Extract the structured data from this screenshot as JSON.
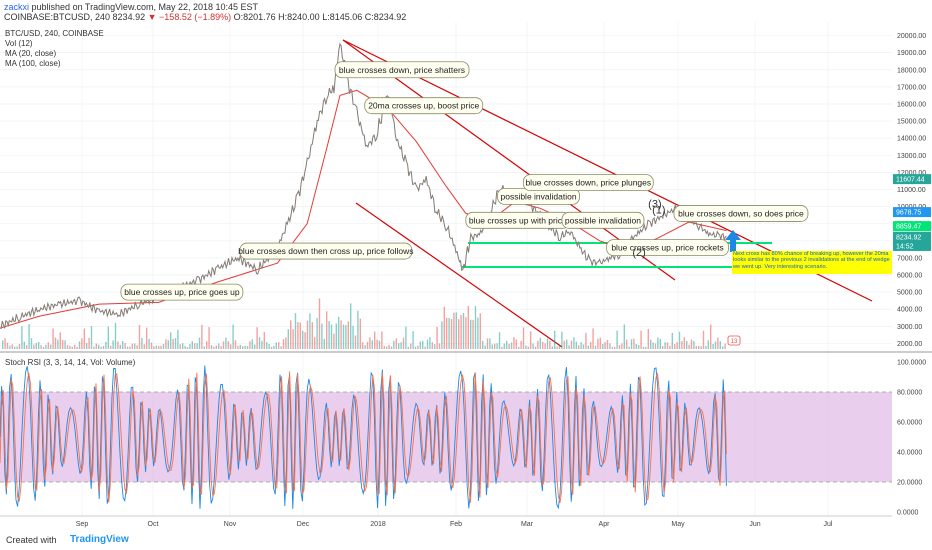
{
  "header": {
    "author": "zackxi",
    "published": "published on TradingView.com, May 22, 2018 10:45 EST",
    "symbol": "COINBASE:BTCUSD, 240",
    "last": "8234.92",
    "change": "−158.52 (−1.89%)",
    "ohlc": "O:8201.76 H:8240.00 L:8145.06 C:8234.92"
  },
  "footer": {
    "created": "Created with",
    "brand": "TradingView"
  },
  "colors": {
    "price_up": "#26a69a",
    "price_down": "#ef5350",
    "ma20": "#e53935",
    "wedge": "#d50000",
    "support": "#00e676",
    "rsi_k": "#1e88e5",
    "rsi_d": "#ff7043",
    "rsi_band": "#e1bee7"
  },
  "chart_data": {
    "type": "line",
    "legend": [
      "BTC/USD, 240, COINBASE",
      "Vol (12)",
      "MA (20, close)",
      "MA (100, close)"
    ],
    "x_ticks": [
      "Sep",
      "Oct",
      "Nov",
      "Dec",
      "2018",
      "Feb",
      "Mar",
      "Apr",
      "May",
      "Jun",
      "Jul"
    ],
    "y_ticks": [
      "20000.00",
      "19000.00",
      "18000.00",
      "17000.00",
      "16000.00",
      "15000.00",
      "14000.00",
      "13000.00",
      "12000.00",
      "11000.00",
      "10000.00",
      "9000.00",
      "8000.00",
      "7000.00",
      "6000.00",
      "5000.00",
      "4000.00",
      "3000.00",
      "2000.00"
    ],
    "ylim": [
      1500,
      20500
    ],
    "x_range": [
      0,
      900
    ],
    "price_path": [
      [
        0,
        3000
      ],
      [
        20,
        3550
      ],
      [
        40,
        4000
      ],
      [
        60,
        4300
      ],
      [
        80,
        4500
      ],
      [
        100,
        3900
      ],
      [
        120,
        3700
      ],
      [
        140,
        4300
      ],
      [
        160,
        4700
      ],
      [
        180,
        5200
      ],
      [
        200,
        5700
      ],
      [
        220,
        6400
      ],
      [
        240,
        7000
      ],
      [
        260,
        6300
      ],
      [
        280,
        7600
      ],
      [
        290,
        9000
      ],
      [
        300,
        10500
      ],
      [
        310,
        12500
      ],
      [
        320,
        15000
      ],
      [
        330,
        16500
      ],
      [
        337,
        17000
      ],
      [
        343,
        19600
      ],
      [
        350,
        17500
      ],
      [
        360,
        15500
      ],
      [
        370,
        13500
      ],
      [
        380,
        14200
      ],
      [
        392,
        16800
      ],
      [
        400,
        14000
      ],
      [
        410,
        12500
      ],
      [
        420,
        11000
      ],
      [
        430,
        11600
      ],
      [
        440,
        9800
      ],
      [
        450,
        8900
      ],
      [
        460,
        7500
      ],
      [
        467,
        6200
      ],
      [
        475,
        8200
      ],
      [
        485,
        8400
      ],
      [
        495,
        9700
      ],
      [
        505,
        11200
      ],
      [
        515,
        10300
      ],
      [
        525,
        10700
      ],
      [
        535,
        10100
      ],
      [
        545,
        9500
      ],
      [
        555,
        8800
      ],
      [
        565,
        8200
      ],
      [
        575,
        8600
      ],
      [
        585,
        7600
      ],
      [
        595,
        6800
      ],
      [
        605,
        6700
      ],
      [
        615,
        7000
      ],
      [
        625,
        7200
      ],
      [
        635,
        8000
      ],
      [
        645,
        8500
      ],
      [
        655,
        9000
      ],
      [
        670,
        9500
      ],
      [
        685,
        10000
      ],
      [
        695,
        9400
      ],
      [
        705,
        8900
      ],
      [
        715,
        8400
      ],
      [
        725,
        8300
      ],
      [
        733,
        8235
      ]
    ],
    "ma20_path": [
      [
        0,
        2900
      ],
      [
        40,
        3600
      ],
      [
        100,
        4300
      ],
      [
        160,
        4400
      ],
      [
        220,
        5600
      ],
      [
        280,
        6700
      ],
      [
        310,
        9000
      ],
      [
        330,
        13500
      ],
      [
        343,
        16500
      ],
      [
        360,
        16800
      ],
      [
        392,
        15700
      ],
      [
        420,
        13800
      ],
      [
        450,
        11200
      ],
      [
        470,
        9600
      ],
      [
        495,
        9200
      ],
      [
        520,
        10300
      ],
      [
        545,
        9900
      ],
      [
        575,
        9100
      ],
      [
        605,
        8000
      ],
      [
        635,
        7400
      ],
      [
        665,
        8200
      ],
      [
        695,
        9100
      ],
      [
        733,
        8600
      ]
    ],
    "volume_ticks": "13",
    "rsi": {
      "title": "Stoch RSI (3, 3, 14, 14, Vol: Volume)",
      "y_ticks": [
        "100.0000",
        "80.0000",
        "60.0000",
        "40.0000",
        "20.0000",
        "0.0000"
      ],
      "band": [
        20,
        80
      ],
      "last_k": 52,
      "last_d": 35
    },
    "price_tags": [
      {
        "value": "11607.44",
        "y": 11607,
        "color": "#26a69a"
      },
      {
        "value": "9678.75",
        "y": 9679,
        "color": "#2196f3"
      },
      {
        "value": "8859.47",
        "y": 8859,
        "color": "#00e676"
      },
      {
        "value": "8234.92",
        "y": 8235,
        "color": "#26a69a"
      },
      {
        "value": "14:52",
        "y": 7700,
        "color": "#26a69a"
      }
    ],
    "annotations": [
      {
        "text": "blue crosses up, price goes up",
        "x": 122,
        "y": 5000,
        "w": 122
      },
      {
        "text": "blue crosses down then cross up, price follows",
        "x": 242,
        "y": 7400,
        "w": 172
      },
      {
        "text": "blue crosses down, price shatters",
        "x": 338,
        "y": 18000,
        "w": 134
      },
      {
        "text": "20ma crosses up, boost price",
        "x": 368,
        "y": 15900,
        "w": 118
      },
      {
        "text": "possible invalidation",
        "x": 502,
        "y": 10600,
        "w": 82
      },
      {
        "text": "blue crosses down, price plunges",
        "x": 528,
        "y": 11400,
        "w": 130
      },
      {
        "text": "blue crosses up with price",
        "x": 470,
        "y": 9200,
        "w": 104
      },
      {
        "text": "possible invalidation",
        "x": 567,
        "y": 9200,
        "w": 82
      },
      {
        "text": "blue crosses up, price rockets",
        "x": 612,
        "y": 7600,
        "w": 122
      },
      {
        "text": "blue crosses  down, so does price",
        "x": 680,
        "y": 9600,
        "w": 134
      }
    ],
    "wave_labels": [
      {
        "text": "(1)",
        "x": 658,
        "y": 9600
      },
      {
        "text": "(2)",
        "x": 638,
        "y": 7100
      },
      {
        "text": "(3)",
        "x": 654,
        "y": 9950
      }
    ],
    "note": "Next cross has 80% chance of breaking up, however the 20ma looks similar to the previous 2 invalidations at the end of wedge we went up. Very interesting scenario."
  }
}
